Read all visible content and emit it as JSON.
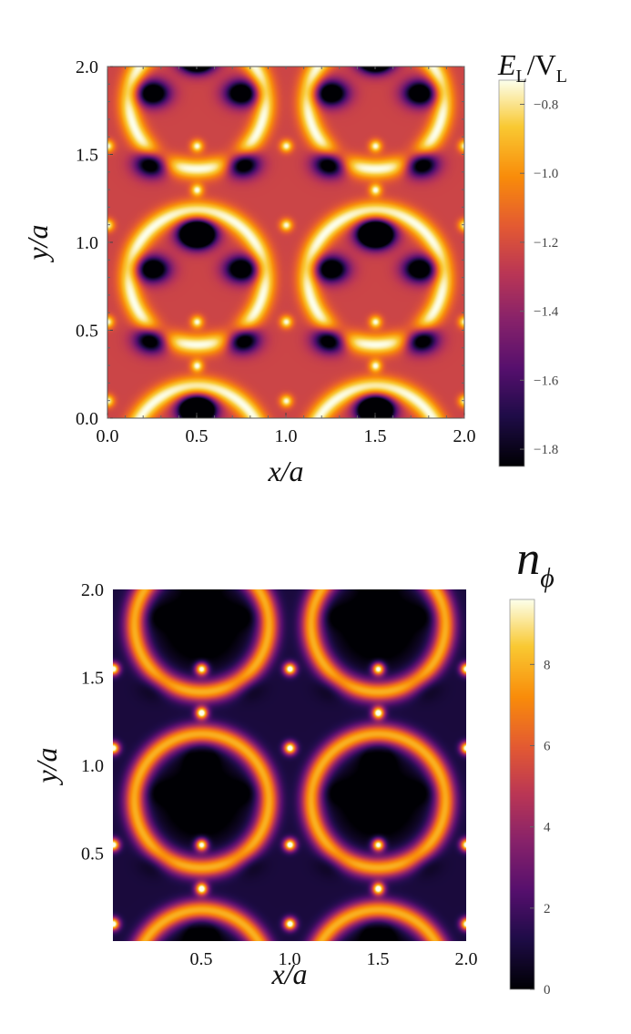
{
  "chart_data": [
    {
      "type": "heatmap",
      "title": "E_L/V_L",
      "title_parts": {
        "main": "E",
        "sub1": "L",
        "sep": "/V",
        "sub2": "L"
      },
      "xlabel": "x/a",
      "ylabel": "y/a",
      "xlim": [
        0,
        2
      ],
      "ylim": [
        0,
        2
      ],
      "xticks": [
        "0.0",
        "0.5",
        "1.0",
        "1.5",
        "2.0"
      ],
      "yticks": [
        "0.0",
        "0.5",
        "1.0",
        "1.5",
        "2.0"
      ],
      "xtick_values": [
        0,
        0.5,
        1.0,
        1.5,
        2.0
      ],
      "ytick_values": [
        0,
        0.5,
        1.0,
        1.5,
        2.0
      ],
      "colorbar": {
        "range": [
          -1.85,
          -0.73
        ],
        "ticks": [
          "-0.8",
          "-1.0",
          "-1.2",
          "-1.4",
          "-1.6",
          "-1.8"
        ],
        "tick_values": [
          -0.8,
          -1.0,
          -1.2,
          -1.4,
          -1.6,
          -1.8
        ]
      },
      "description_values": {
        "ring_max": -0.75,
        "center_value": -1.3,
        "min_value": -1.85
      }
    },
    {
      "type": "heatmap",
      "title": "n_phi",
      "title_parts": {
        "main": "n",
        "sub": "ϕ"
      },
      "xlabel": "x/a",
      "ylabel": "y/a",
      "xlim": [
        0,
        2
      ],
      "ylim": [
        0,
        2
      ],
      "xticks": [
        "0.5",
        "1.0",
        "1.5",
        "2.0"
      ],
      "yticks": [
        "0.5",
        "1.0",
        "1.5",
        "2.0"
      ],
      "xtick_values": [
        0.5,
        1.0,
        1.5,
        2.0
      ],
      "ytick_values": [
        0.5,
        1.0,
        1.5,
        2.0
      ],
      "colorbar": {
        "range": [
          0,
          9.6
        ],
        "ticks": [
          "0",
          "2",
          "4",
          "6",
          "8"
        ],
        "tick_values": [
          0,
          2,
          4,
          6,
          8
        ]
      },
      "description_values": {
        "peak_value": 9.6,
        "ring_value": 5.5,
        "min_value": 0
      }
    }
  ]
}
